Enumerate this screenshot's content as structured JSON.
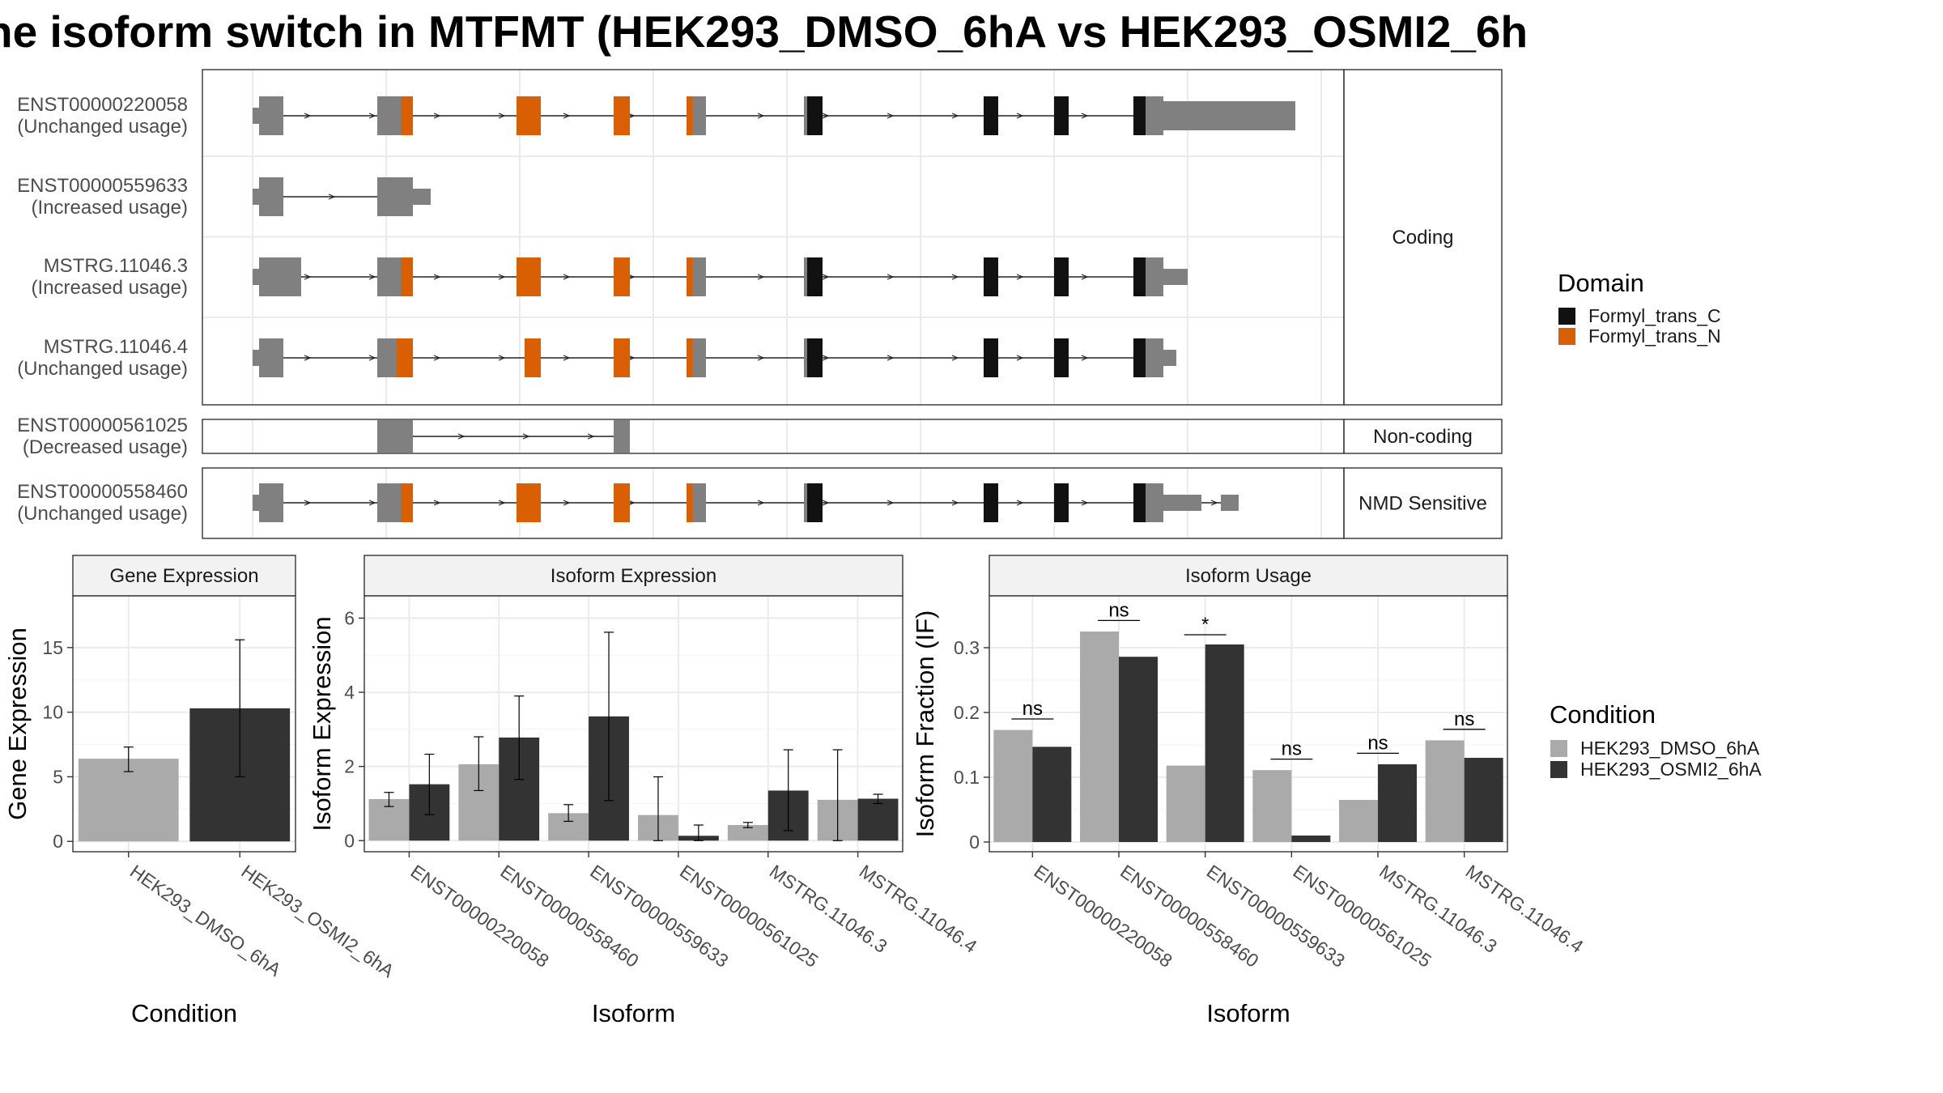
{
  "title": "he isoform switch in MTFMT (HEK293_DMSO_6hA vs HEK293_OSMI2_6h",
  "colors": {
    "exon": "#808080",
    "formyl_c": "#111111",
    "formyl_n": "#d95f02",
    "dmso": "#aaaaaa",
    "osmi": "#333333",
    "grid": "#ebebeb",
    "strip_bg": "#f2f2f2",
    "border": "#333333"
  },
  "transcripts": {
    "facets": [
      {
        "label": "Coding",
        "rows": [
          {
            "id": "ENST00000220058",
            "usage": "(Unchanged usage)"
          },
          {
            "id": "ENST00000559633",
            "usage": "(Increased usage)"
          },
          {
            "id": "MSTRG.11046.3",
            "usage": "(Increased usage)"
          },
          {
            "id": "MSTRG.11046.4",
            "usage": "(Unchanged usage)"
          }
        ]
      },
      {
        "label": "Non-coding",
        "rows": [
          {
            "id": "ENST00000561025",
            "usage": "(Decreased usage)"
          }
        ]
      },
      {
        "label": "NMD Sensitive",
        "rows": [
          {
            "id": "ENST00000558460",
            "usage": "(Unchanged usage)"
          }
        ]
      }
    ],
    "legend": {
      "title": "Domain",
      "items": [
        "Formyl_trans_C",
        "Formyl_trans_N"
      ]
    }
  },
  "chart_data": [
    {
      "type": "bar",
      "title": "Gene Expression",
      "xlabel": "Condition",
      "ylabel": "Gene Expression",
      "categories": [
        "HEK293_DMSO_6hA",
        "HEK293_OSMI2_6hA"
      ],
      "values": [
        6.4,
        10.3
      ],
      "error": [
        [
          5.4,
          7.3
        ],
        [
          5.0,
          15.6
        ]
      ],
      "yticks": [
        0,
        5,
        10,
        15
      ],
      "ylim": [
        -0.8,
        19
      ]
    },
    {
      "type": "bar",
      "title": "Isoform Expression",
      "xlabel": "Isoform",
      "ylabel": "Isoform Expression",
      "categories": [
        "ENST00000220058",
        "ENST00000558460",
        "ENST00000559633",
        "ENST00000561025",
        "MSTRG.11046.3",
        "MSTRG.11046.4"
      ],
      "series": [
        {
          "name": "HEK293_DMSO_6hA",
          "values": [
            1.12,
            2.06,
            0.74,
            0.69,
            0.42,
            1.1
          ],
          "error": [
            [
              0.92,
              1.3
            ],
            [
              1.35,
              2.8
            ],
            [
              0.52,
              0.97
            ],
            [
              0.0,
              1.72
            ],
            [
              0.35,
              0.49
            ],
            [
              0.0,
              2.45
            ]
          ]
        },
        {
          "name": "HEK293_OSMI2_6hA",
          "values": [
            1.52,
            2.78,
            3.35,
            0.13,
            1.35,
            1.13
          ],
          "error": [
            [
              0.7,
              2.33
            ],
            [
              1.65,
              3.9
            ],
            [
              1.08,
              5.62
            ],
            [
              0.0,
              0.42
            ],
            [
              0.27,
              2.45
            ],
            [
              1.0,
              1.25
            ]
          ]
        }
      ],
      "yticks": [
        0,
        2,
        4,
        6
      ],
      "ylim": [
        -0.3,
        6.6
      ]
    },
    {
      "type": "bar",
      "title": "Isoform Usage",
      "xlabel": "Isoform",
      "ylabel": "Isoform Fraction (IF)",
      "categories": [
        "ENST00000220058",
        "ENST00000558460",
        "ENST00000559633",
        "ENST00000561025",
        "MSTRG.11046.3",
        "MSTRG.11046.4"
      ],
      "series": [
        {
          "name": "HEK293_DMSO_6hA",
          "values": [
            0.173,
            0.325,
            0.118,
            0.111,
            0.065,
            0.157
          ]
        },
        {
          "name": "HEK293_OSMI2_6hA",
          "values": [
            0.147,
            0.286,
            0.305,
            0.01,
            0.12,
            0.13
          ]
        }
      ],
      "significance": [
        "ns",
        "ns",
        "*",
        "ns",
        "ns",
        "ns"
      ],
      "sig_level": [
        0.19,
        0.342,
        0.32,
        0.128,
        0.137,
        0.174
      ],
      "yticks": [
        0.0,
        0.1,
        0.2,
        0.3
      ],
      "ylim": [
        -0.015,
        0.38
      ]
    }
  ],
  "condition_legend": {
    "title": "Condition",
    "items": [
      "HEK293_DMSO_6hA",
      "HEK293_OSMI2_6hA"
    ]
  }
}
